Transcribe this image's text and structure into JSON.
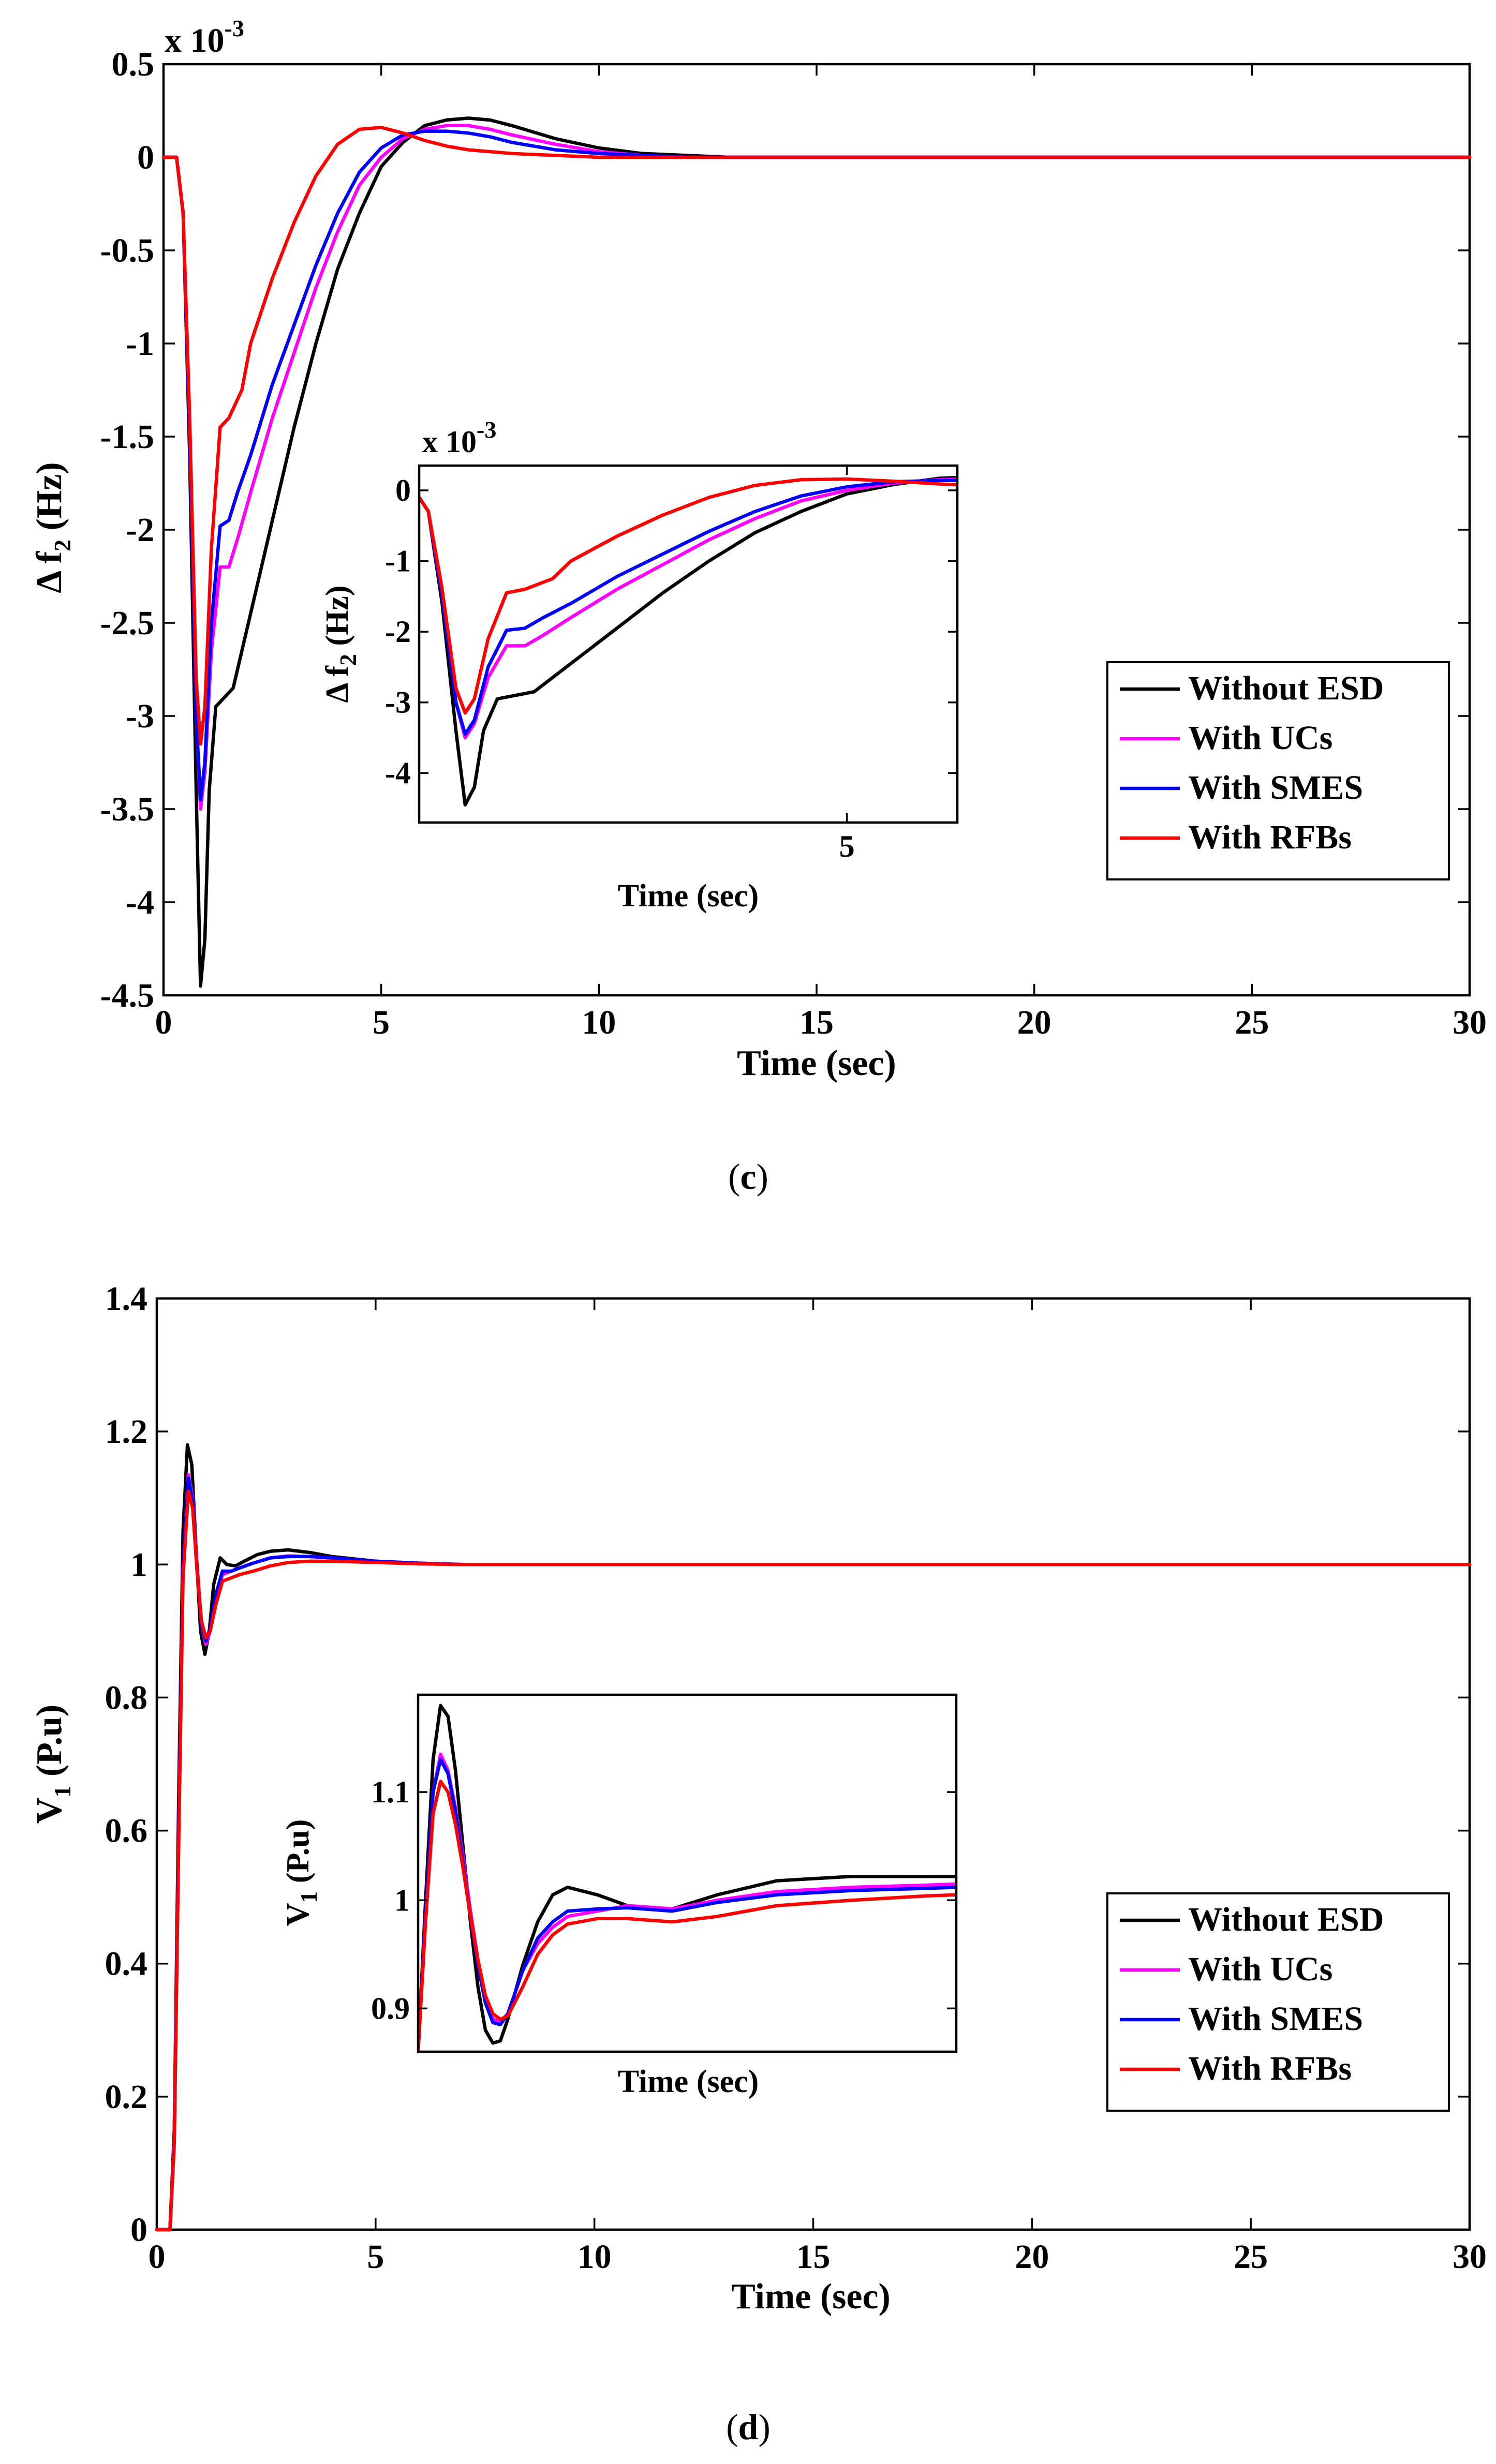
{
  "chart_data": [
    {
      "id": "c",
      "type": "line",
      "caption": "c",
      "exponent_label": "x 10",
      "exponent_power": "-3",
      "xlabel": "Time (sec)",
      "ylabel_main": "Δ f",
      "ylabel_sub": "2",
      "ylabel_unit": " (Hz)",
      "xlim": [
        0,
        30
      ],
      "ylim": [
        -4.5,
        0.5
      ],
      "xticks": [
        0,
        5,
        10,
        15,
        20,
        25,
        30
      ],
      "xtick_labels": [
        "0",
        "5",
        "10",
        "15",
        "20",
        "25",
        "30"
      ],
      "yticks": [
        0.5,
        0,
        -0.5,
        -1,
        -1.5,
        -2,
        -2.5,
        -3,
        -3.5,
        -4,
        -4.5
      ],
      "ytick_labels": [
        "0.5",
        "0",
        "-0.5",
        "-1",
        "-1.5",
        "-2",
        "-2.5",
        "-3",
        "-3.5",
        "-4",
        "-4.5"
      ],
      "legend": [
        "Without ESD",
        "With UCs",
        "With SMES",
        "With RFBs"
      ],
      "legend_position": "lower-right",
      "series": [
        {
          "name": "Without ESD",
          "color": "#000000",
          "x": [
            0,
            0.3,
            0.45,
            0.6,
            0.75,
            0.85,
            0.95,
            1.05,
            1.2,
            1.4,
            1.6,
            2,
            2.5,
            3,
            3.5,
            4,
            4.5,
            5,
            5.5,
            6,
            6.5,
            7,
            7.5,
            8,
            9,
            10,
            11,
            12,
            13,
            14,
            15,
            17,
            20,
            25,
            30
          ],
          "y": [
            0,
            0,
            -0.3,
            -1.6,
            -3.4,
            -4.45,
            -4.2,
            -3.4,
            -2.95,
            -2.9,
            -2.85,
            -2.45,
            -1.95,
            -1.45,
            -1.0,
            -0.6,
            -0.3,
            -0.05,
            0.08,
            0.17,
            0.2,
            0.21,
            0.2,
            0.17,
            0.1,
            0.05,
            0.02,
            0.01,
            0.0,
            0,
            0,
            0,
            0,
            0,
            0
          ]
        },
        {
          "name": "With UCs",
          "color": "#ff00ff",
          "x": [
            0,
            0.3,
            0.45,
            0.6,
            0.75,
            0.85,
            0.95,
            1.1,
            1.3,
            1.5,
            1.7,
            2,
            2.5,
            3,
            3.5,
            4,
            4.5,
            5,
            5.5,
            6,
            6.5,
            7,
            7.5,
            8,
            9,
            10,
            11,
            12,
            13,
            15,
            20,
            25,
            30
          ],
          "y": [
            0,
            0,
            -0.3,
            -1.5,
            -3.0,
            -3.5,
            -3.3,
            -2.65,
            -2.2,
            -2.2,
            -2.05,
            -1.8,
            -1.4,
            -1.05,
            -0.7,
            -0.4,
            -0.15,
            0.0,
            0.1,
            0.15,
            0.17,
            0.17,
            0.15,
            0.12,
            0.07,
            0.03,
            0.01,
            0.0,
            0,
            0,
            0,
            0,
            0
          ]
        },
        {
          "name": "With SMES",
          "color": "#0000ff",
          "x": [
            0,
            0.3,
            0.45,
            0.6,
            0.75,
            0.85,
            0.95,
            1.1,
            1.3,
            1.5,
            1.7,
            2,
            2.5,
            3,
            3.5,
            4,
            4.5,
            5,
            5.5,
            6,
            6.5,
            7,
            7.5,
            8,
            9,
            10,
            11,
            12,
            13,
            15,
            20,
            25,
            30
          ],
          "y": [
            0,
            0,
            -0.3,
            -1.5,
            -3.0,
            -3.45,
            -3.25,
            -2.5,
            -1.98,
            -1.95,
            -1.8,
            -1.6,
            -1.22,
            -0.9,
            -0.58,
            -0.3,
            -0.08,
            0.05,
            0.12,
            0.14,
            0.14,
            0.13,
            0.11,
            0.08,
            0.04,
            0.02,
            0.01,
            0,
            0,
            0,
            0,
            0,
            0
          ]
        },
        {
          "name": "With RFBs",
          "color": "#ff0000",
          "x": [
            0,
            0.3,
            0.45,
            0.6,
            0.75,
            0.85,
            0.95,
            1.1,
            1.3,
            1.5,
            1.8,
            2,
            2.5,
            3,
            3.5,
            4,
            4.5,
            5,
            5.5,
            6,
            6.5,
            7,
            8,
            9,
            10,
            11,
            12,
            15,
            20,
            25,
            30
          ],
          "y": [
            0,
            0,
            -0.3,
            -1.4,
            -2.8,
            -3.15,
            -2.95,
            -2.1,
            -1.45,
            -1.4,
            -1.25,
            -1.0,
            -0.65,
            -0.35,
            -0.1,
            0.07,
            0.15,
            0.16,
            0.13,
            0.09,
            0.06,
            0.04,
            0.02,
            0.01,
            0,
            0,
            0,
            0,
            0,
            0,
            0
          ]
        }
      ],
      "inset": {
        "exponent_label": "x 10",
        "exponent_power": "-3",
        "xlabel": "Time (sec)",
        "ylabel_main": "Δ f",
        "ylabel_sub": "2",
        "ylabel_unit": " (Hz)",
        "xlim": [
          0.35,
          6.2
        ],
        "ylim": [
          -4.7,
          0.35
        ],
        "xticks": [
          5
        ],
        "xtick_labels": [
          "5"
        ],
        "yticks": [
          0,
          -1,
          -2,
          -3,
          -4
        ],
        "ytick_labels": [
          "0",
          "-1",
          "-2",
          "-3",
          "-4"
        ]
      }
    },
    {
      "id": "d",
      "type": "line",
      "caption": "d",
      "xlabel": "Time (sec)",
      "ylabel_main": "V",
      "ylabel_sub": "1",
      "ylabel_unit": " (P.u)",
      "xlim": [
        0,
        30
      ],
      "ylim": [
        0,
        1.4
      ],
      "xticks": [
        0,
        5,
        10,
        15,
        20,
        25,
        30
      ],
      "xtick_labels": [
        "0",
        "5",
        "10",
        "15",
        "20",
        "25",
        "30"
      ],
      "yticks": [
        0,
        0.2,
        0.4,
        0.6,
        0.8,
        1,
        1.2,
        1.4
      ],
      "ytick_labels": [
        "0",
        "0.2",
        "0.4",
        "0.6",
        "0.8",
        "1",
        "1.2",
        "1.4"
      ],
      "legend": [
        "Without ESD",
        "With UCs",
        "With SMES",
        "With RFBs"
      ],
      "legend_position": "lower-right",
      "series": [
        {
          "name": "Without ESD",
          "color": "#000000",
          "x": [
            0,
            0.3,
            0.4,
            0.5,
            0.6,
            0.7,
            0.8,
            0.9,
            1.0,
            1.1,
            1.2,
            1.3,
            1.45,
            1.6,
            1.8,
            2.0,
            2.3,
            2.6,
            3.0,
            3.5,
            4,
            5,
            6,
            7,
            8,
            10,
            15,
            20,
            25,
            30
          ],
          "y": [
            0,
            0,
            0.15,
            0.65,
            1.05,
            1.18,
            1.15,
            1.02,
            0.9,
            0.865,
            0.9,
            0.97,
            1.01,
            1.0,
            0.998,
            1.005,
            1.015,
            1.02,
            1.022,
            1.018,
            1.012,
            1.005,
            1.002,
            1.0,
            1.0,
            1.0,
            1.0,
            1.0,
            1.0,
            1.0
          ]
        },
        {
          "name": "With UCs",
          "color": "#ff00ff",
          "x": [
            0,
            0.3,
            0.4,
            0.5,
            0.6,
            0.72,
            0.82,
            0.92,
            1.02,
            1.12,
            1.22,
            1.35,
            1.5,
            1.7,
            1.9,
            2.2,
            2.6,
            3.0,
            3.5,
            4,
            5,
            6,
            7,
            8,
            10,
            15,
            20,
            25,
            30
          ],
          "y": [
            0,
            0,
            0.14,
            0.6,
            1.0,
            1.135,
            1.1,
            1.0,
            0.91,
            0.88,
            0.9,
            0.95,
            0.985,
            0.99,
            0.995,
            1.002,
            1.01,
            1.013,
            1.012,
            1.01,
            1.005,
            1.002,
            1.0,
            1.0,
            1.0,
            1.0,
            1.0,
            1.0,
            1.0
          ]
        },
        {
          "name": "With SMES",
          "color": "#0000ff",
          "x": [
            0,
            0.3,
            0.4,
            0.5,
            0.6,
            0.72,
            0.82,
            0.92,
            1.02,
            1.12,
            1.22,
            1.35,
            1.5,
            1.7,
            1.9,
            2.2,
            2.6,
            3.0,
            3.5,
            4,
            5,
            6,
            7,
            8,
            10,
            15,
            20,
            25,
            30
          ],
          "y": [
            0,
            0,
            0.14,
            0.6,
            1.0,
            1.13,
            1.095,
            0.995,
            0.91,
            0.885,
            0.905,
            0.955,
            0.99,
            0.99,
            0.995,
            1.002,
            1.01,
            1.012,
            1.012,
            1.01,
            1.005,
            1.002,
            1.0,
            1.0,
            1.0,
            1.0,
            1.0,
            1.0,
            1.0
          ]
        },
        {
          "name": "With RFBs",
          "color": "#ff0000",
          "x": [
            0,
            0.3,
            0.4,
            0.5,
            0.6,
            0.72,
            0.82,
            0.92,
            1.02,
            1.12,
            1.22,
            1.35,
            1.5,
            1.7,
            1.9,
            2.2,
            2.6,
            3.0,
            3.5,
            4,
            5,
            6,
            7,
            8,
            10,
            15,
            20,
            25,
            30
          ],
          "y": [
            0,
            0,
            0.13,
            0.58,
            0.98,
            1.11,
            1.085,
            0.99,
            0.915,
            0.89,
            0.9,
            0.94,
            0.975,
            0.98,
            0.985,
            0.99,
            0.998,
            1.003,
            1.005,
            1.005,
            1.003,
            1.001,
            1.0,
            1.0,
            1.0,
            1.0,
            1.0,
            1.0,
            1.0
          ]
        }
      ],
      "inset": {
        "xlabel": "Time (sec)",
        "ylabel_main": "V",
        "ylabel_sub": "1",
        "ylabel_unit": " (P.u)",
        "xlim": [
          0.6,
          4.2
        ],
        "ylim": [
          0.86,
          1.19
        ],
        "xticks": [],
        "xtick_labels": [],
        "yticks": [
          0.9,
          1.0,
          1.1
        ],
        "ytick_labels": [
          "0.9",
          "1",
          "1.1"
        ],
        "series_y": [
          {
            "name": "Without ESD",
            "x": [
              0.6,
              0.65,
              0.7,
              0.75,
              0.8,
              0.85,
              0.9,
              0.95,
              1.0,
              1.05,
              1.1,
              1.15,
              1.2,
              1.3,
              1.4,
              1.5,
              1.6,
              1.8,
              2.0,
              2.3,
              2.6,
              3.0,
              3.5,
              4.0,
              4.2
            ],
            "y": [
              0.86,
              1.0,
              1.13,
              1.18,
              1.17,
              1.12,
              1.05,
              0.98,
              0.92,
              0.88,
              0.868,
              0.87,
              0.89,
              0.94,
              0.98,
              1.005,
              1.012,
              1.005,
              0.995,
              0.992,
              1.005,
              1.018,
              1.022,
              1.022,
              1.022
            ]
          },
          {
            "name": "With UCs",
            "x": [
              0.6,
              0.65,
              0.7,
              0.75,
              0.8,
              0.85,
              0.9,
              0.95,
              1.0,
              1.05,
              1.1,
              1.15,
              1.2,
              1.3,
              1.4,
              1.5,
              1.6,
              1.8,
              2.0,
              2.3,
              2.6,
              3.0,
              3.5,
              4.0,
              4.2
            ],
            "y": [
              0.86,
              0.99,
              1.1,
              1.135,
              1.12,
              1.085,
              1.04,
              0.99,
              0.945,
              0.91,
              0.89,
              0.888,
              0.895,
              0.935,
              0.96,
              0.975,
              0.985,
              0.99,
              0.995,
              0.992,
              1.0,
              1.008,
              1.012,
              1.014,
              1.015
            ]
          },
          {
            "name": "With SMES",
            "x": [
              0.6,
              0.65,
              0.7,
              0.75,
              0.8,
              0.85,
              0.9,
              0.95,
              1.0,
              1.05,
              1.1,
              1.15,
              1.2,
              1.3,
              1.4,
              1.5,
              1.6,
              1.8,
              2.0,
              2.3,
              2.6,
              3.0,
              3.5,
              4.0,
              4.2
            ],
            "y": [
              0.86,
              0.99,
              1.1,
              1.13,
              1.117,
              1.082,
              1.035,
              0.985,
              0.94,
              0.905,
              0.887,
              0.885,
              0.895,
              0.935,
              0.965,
              0.98,
              0.99,
              0.992,
              0.993,
              0.99,
              0.998,
              1.005,
              1.009,
              1.011,
              1.012
            ]
          },
          {
            "name": "With RFBs",
            "x": [
              0.6,
              0.65,
              0.7,
              0.75,
              0.8,
              0.85,
              0.9,
              0.95,
              1.0,
              1.05,
              1.1,
              1.15,
              1.2,
              1.3,
              1.4,
              1.5,
              1.6,
              1.8,
              2.0,
              2.3,
              2.6,
              3.0,
              3.5,
              4.0,
              4.2
            ],
            "y": [
              0.86,
              0.98,
              1.08,
              1.11,
              1.1,
              1.07,
              1.03,
              0.985,
              0.945,
              0.912,
              0.895,
              0.89,
              0.893,
              0.92,
              0.95,
              0.968,
              0.978,
              0.983,
              0.983,
              0.98,
              0.985,
              0.995,
              1.0,
              1.004,
              1.005
            ]
          }
        ]
      }
    }
  ]
}
